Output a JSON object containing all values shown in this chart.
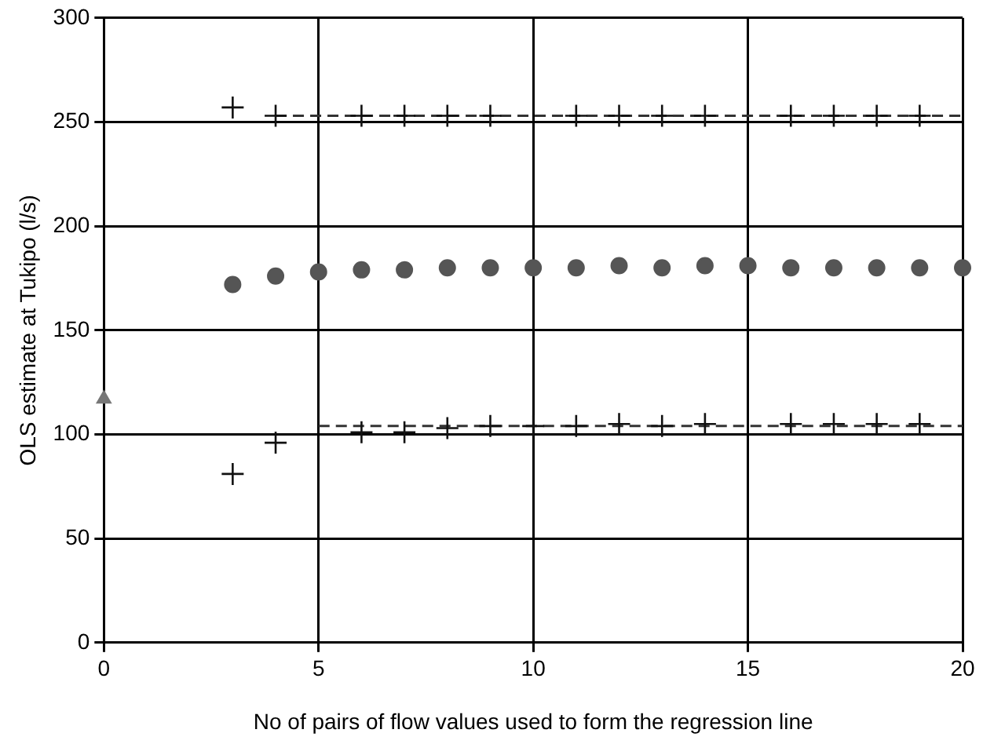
{
  "chart_data": {
    "type": "scatter",
    "xlabel": "No of pairs of flow values used to form the regression line",
    "ylabel": "OLS estimate at Tukipo (l/s)",
    "xlim": [
      0,
      20
    ],
    "xticks": [
      0,
      5,
      10,
      15,
      20
    ],
    "ylim": [
      0,
      300
    ],
    "yticks": [
      0,
      50,
      100,
      150,
      200,
      250,
      300
    ],
    "grid": true,
    "legend": false,
    "series": [
      {
        "type": "scatter",
        "marker": "cross",
        "color": "#111111",
        "x": [
          3,
          4,
          6,
          7,
          8,
          9,
          11,
          12,
          13,
          14,
          16,
          17,
          18,
          19
        ],
        "values": [
          257,
          253,
          253,
          253,
          253,
          253,
          253,
          253,
          253,
          253,
          253,
          253,
          253,
          253
        ]
      },
      {
        "type": "scatter",
        "marker": "circle",
        "color": "#555555",
        "x": [
          3,
          4,
          5,
          6,
          7,
          8,
          9,
          10,
          11,
          12,
          13,
          14,
          15,
          16,
          17,
          18,
          19,
          20
        ],
        "values": [
          172,
          176,
          178,
          179,
          179,
          180,
          180,
          180,
          180,
          181,
          180,
          181,
          181,
          180,
          180,
          180,
          180,
          180
        ]
      },
      {
        "type": "scatter",
        "marker": "cross",
        "color": "#111111",
        "x": [
          3,
          4,
          6,
          7,
          8,
          9,
          10,
          11,
          12,
          13,
          14,
          16,
          17,
          18,
          19
        ],
        "values": [
          81,
          96,
          101,
          101,
          103,
          104,
          104,
          104,
          105,
          104,
          105,
          105,
          105,
          105,
          105
        ]
      },
      {
        "type": "scatter",
        "marker": "triangle",
        "color": "#777777",
        "x": [
          0
        ],
        "values": [
          117
        ]
      },
      {
        "type": "line",
        "line_style": "dashed",
        "marker": "none",
        "color": "#333333",
        "x": [
          4,
          20
        ],
        "values": [
          253,
          253
        ]
      },
      {
        "type": "line",
        "line_style": "dashed",
        "marker": "none",
        "color": "#333333",
        "x": [
          5,
          20
        ],
        "values": [
          104,
          104
        ]
      }
    ]
  }
}
